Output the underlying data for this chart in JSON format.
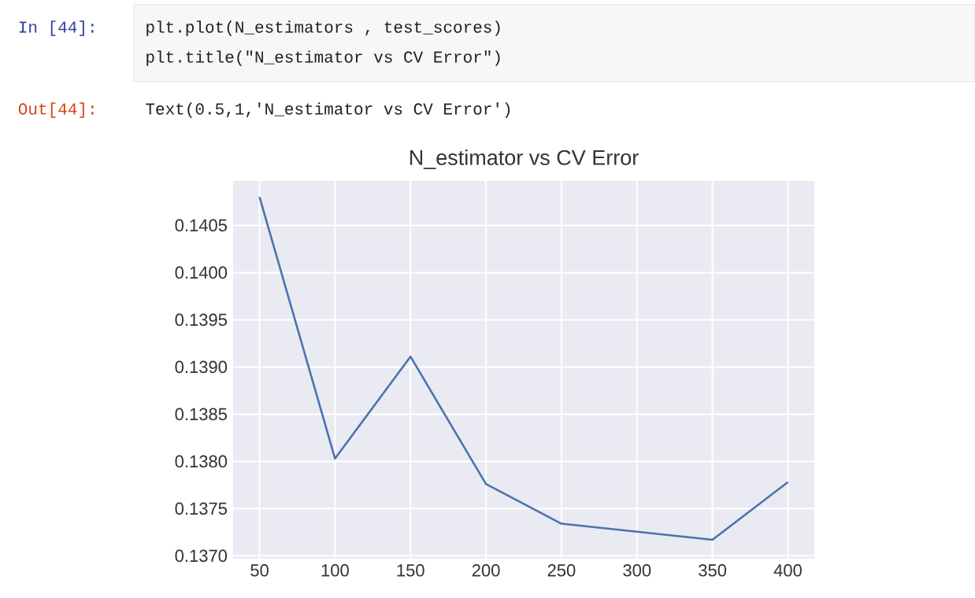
{
  "chart_data": {
    "type": "line",
    "title": "N_estimator vs CV Error",
    "x": [
      50,
      100,
      150,
      200,
      250,
      350,
      400
    ],
    "series": [
      {
        "color": "#4c72b0",
        "values": [
          0.1408,
          0.13803,
          0.13911,
          0.13776,
          0.13734,
          0.13717,
          0.13778
        ]
      }
    ],
    "xlim": [
      32.5,
      417.5
    ],
    "ylim": [
      0.13697,
      0.14097
    ],
    "xticks": [
      50,
      100,
      150,
      200,
      250,
      300,
      350,
      400
    ],
    "yticks": [
      {
        "value": 0.137,
        "label": "0.1370"
      },
      0.1375,
      {
        "value": 0.138,
        "label": "0.1380"
      },
      0.1385,
      {
        "value": 0.139,
        "label": "0.1390"
      },
      0.1395,
      {
        "value": 0.14,
        "label": "0.1400"
      },
      0.1405
    ],
    "grid": true,
    "marker": "none",
    "line_style": "solid",
    "annotations": [
      "In [44]:",
      "plt.plot(N_estimators , test_scores)",
      "plt.title(\"N_estimator vs CV Error\")",
      "Out[44]:",
      "Text(0.5,1,'N_estimator vs CV Error')"
    ]
  }
}
